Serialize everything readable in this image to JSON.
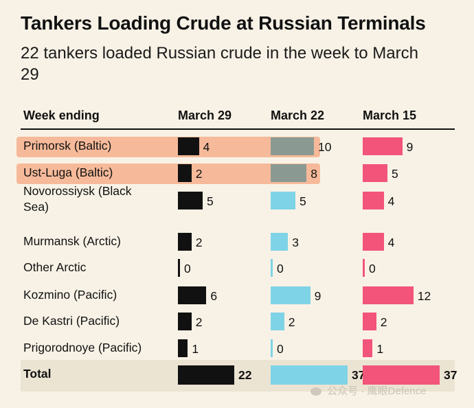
{
  "chart_data": {
    "type": "table",
    "title": "Tankers Loading Crude at Russian Terminals",
    "subtitle": "22 tankers loaded Russian crude in the week to March 29",
    "row_header": "Week ending",
    "columns": [
      "March 29",
      "March 22",
      "March 15"
    ],
    "column_colors": [
      "#111111",
      "#7fd3e6",
      "#f2547a"
    ],
    "highlight_color": "#f6b08c",
    "highlight_bar_color": "#8a9a92",
    "max_value": 37,
    "rows": [
      {
        "label": "Primorsk (Baltic)",
        "values": [
          4,
          10,
          9
        ],
        "highlighted": true
      },
      {
        "label": "Ust-Luga (Baltic)",
        "values": [
          2,
          8,
          5
        ],
        "highlighted": true
      },
      {
        "label": "Novorossiysk (Black Sea)",
        "label_lines": [
          "Novorossiysk (Black",
          "Sea)"
        ],
        "values": [
          5,
          5,
          4
        ],
        "highlighted": false
      },
      {
        "label": "Murmansk (Arctic)",
        "values": [
          2,
          3,
          4
        ],
        "highlighted": false
      },
      {
        "label": "Other Arctic",
        "values": [
          0,
          0,
          0
        ],
        "highlighted": false
      },
      {
        "label": "Kozmino (Pacific)",
        "values": [
          6,
          9,
          12
        ],
        "highlighted": false
      },
      {
        "label": "De Kastri (Pacific)",
        "values": [
          2,
          2,
          2
        ],
        "highlighted": false
      },
      {
        "label": "Prigorodnoye (Pacific)",
        "values": [
          1,
          0,
          1
        ],
        "highlighted": false
      }
    ],
    "total": {
      "label": "Total",
      "values": [
        22,
        37,
        37
      ]
    }
  },
  "watermark": {
    "text": "公众号 · 鹰眼Defence",
    "icon": "wechat-icon"
  }
}
